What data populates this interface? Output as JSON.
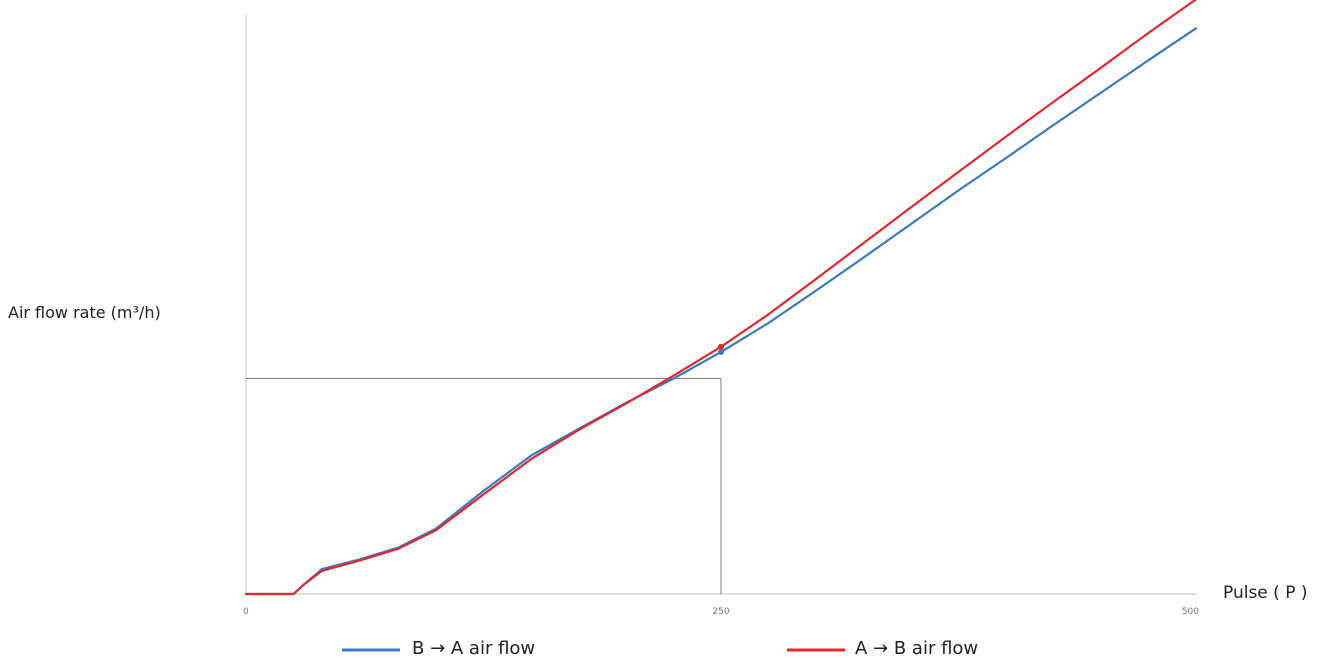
{
  "chart_data": {
    "type": "line",
    "title": "",
    "xlabel": "Pulse ( P )",
    "ylabel": "Air flow rate (m³/h)",
    "xlim": [
      0,
      500
    ],
    "ylim": [
      0,
      100
    ],
    "x_tick_labels": [
      "0",
      "250",
      "500"
    ],
    "x_ticks": [
      0,
      250,
      500
    ],
    "reference": {
      "x": 250,
      "y": 37.2
    },
    "grid": false,
    "legend_position": "bottom",
    "series": [
      {
        "name": "B → A  air flow",
        "color": "#3a79c0",
        "x": [
          0,
          25,
          30,
          40,
          60,
          80,
          100,
          125,
          150,
          175,
          200,
          225,
          250,
          275,
          300,
          325,
          350,
          375,
          400,
          425,
          450,
          475,
          500
        ],
        "y": [
          0,
          0,
          1.5,
          4.3,
          6,
          8,
          11.3,
          17.8,
          23.9,
          28.5,
          33,
          37.2,
          41.8,
          46.8,
          52.4,
          58.1,
          63.9,
          69.7,
          75.3,
          81,
          86.6,
          92.2,
          97.7
        ]
      },
      {
        "name": "A → B  air flow",
        "color": "#e0282e",
        "x": [
          0,
          25,
          30,
          40,
          60,
          80,
          100,
          125,
          150,
          175,
          200,
          225,
          250,
          275,
          300,
          325,
          350,
          375,
          400,
          425,
          450,
          475,
          500
        ],
        "y": [
          0,
          0,
          1.5,
          4,
          5.8,
          7.8,
          11,
          17.2,
          23.3,
          28.3,
          32.9,
          37.7,
          42.7,
          48.3,
          54.4,
          60.6,
          66.8,
          72.9,
          79,
          85,
          90.9,
          96.9,
          102.7
        ]
      }
    ]
  }
}
